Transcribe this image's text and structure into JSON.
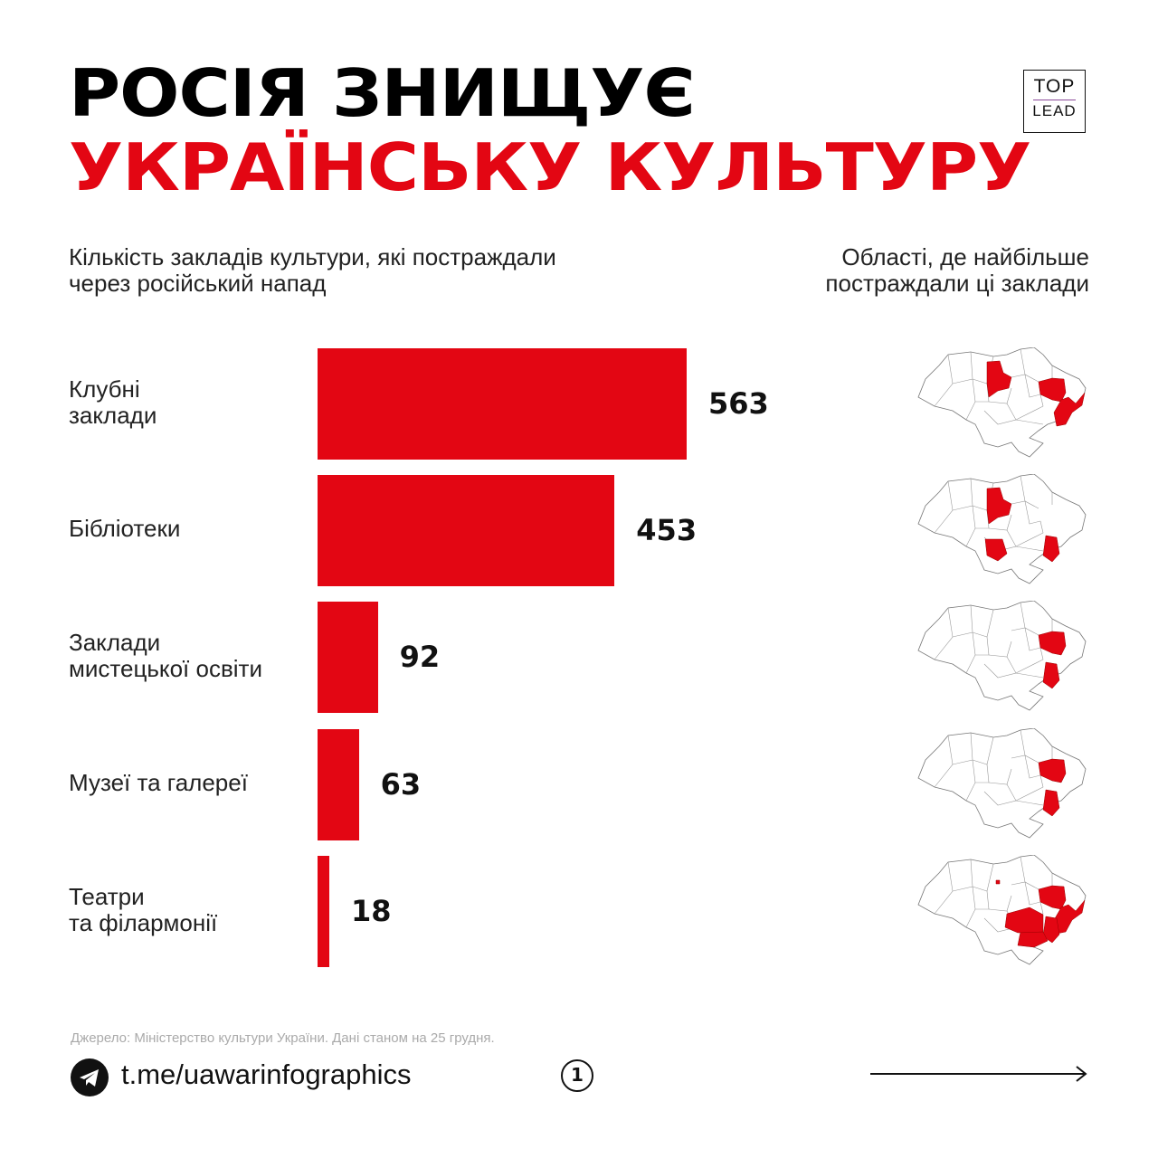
{
  "header": {
    "title_line1": "РОСІЯ ЗНИЩУЄ",
    "title_line2": "УКРАЇНСЬКУ КУЛЬТУРУ",
    "logo_top": "TOP",
    "logo_bottom": "LEAD"
  },
  "subtitle_left": [
    "Кількість закладів культури, які постраждали",
    "через російський напад"
  ],
  "subtitle_right": [
    "Області, де найбільше",
    "постраждали ці заклади"
  ],
  "colors": {
    "accent": "#e30613",
    "text": "#111111"
  },
  "chart_data": {
    "type": "bar",
    "orientation": "horizontal",
    "title": "Кількість закладів культури, які постраждали через російський напад",
    "categories": [
      [
        "Клубні",
        "заклади"
      ],
      [
        "Бібліотеки"
      ],
      [
        "Заклади",
        "мистецької освіти"
      ],
      [
        "Музеї та галереї"
      ],
      [
        "Театри",
        "та філармонії"
      ]
    ],
    "values": [
      563,
      453,
      92,
      63,
      18
    ],
    "value_labels": [
      "563",
      "453",
      "92",
      "63",
      "18"
    ],
    "xlim": [
      0,
      563
    ],
    "grid": false,
    "highlighted_regions": [
      [
        "Kyiv",
        "Kharkiv",
        "Luhansk"
      ],
      [
        "Kyiv",
        "Mykolaiv",
        "Donetsk"
      ],
      [
        "Kharkiv",
        "Donetsk"
      ],
      [
        "Kharkiv",
        "Donetsk"
      ],
      [
        "KyivCity",
        "Kharkiv",
        "Luhansk",
        "Donetsk",
        "Zaporizhzhia",
        "Dnipro"
      ]
    ]
  },
  "footer": {
    "source": "Джерело: Міністерство культури України. Дані станом на 25 грудня.",
    "link": "t.me/uawarinfographics",
    "page": "1",
    "icons": {
      "channel": "telegram-icon",
      "next": "arrow-right-icon"
    }
  }
}
